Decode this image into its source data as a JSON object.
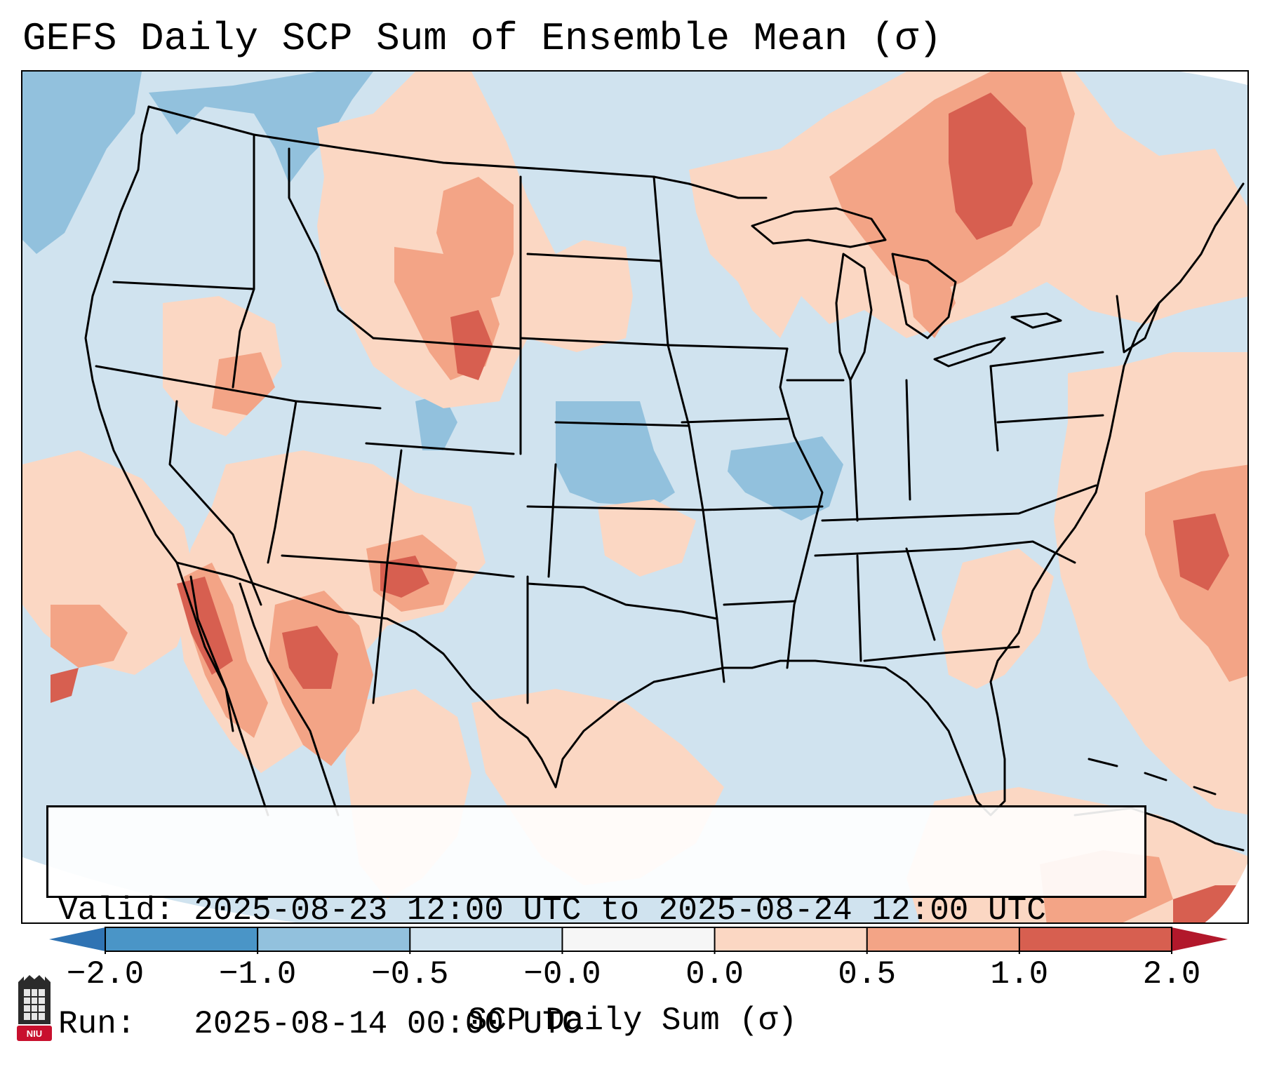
{
  "title": "GEFS Daily SCP Sum of Ensemble Mean (σ)",
  "info": {
    "valid": "Valid: 2025-08-23 12:00 UTC to 2025-08-24 12:00 UTC",
    "run": "Run:   2025-08-14 00:00 UTC"
  },
  "colorbar": {
    "label": "SCP Daily Sum (σ)",
    "ticks": [
      "−2.0",
      "−1.0",
      "−0.5",
      "−0.0",
      "0.0",
      "0.5",
      "1.0",
      "2.0"
    ],
    "bins": [
      {
        "from": -2.0,
        "to": -1.0,
        "color": "#4a95c7"
      },
      {
        "from": -1.0,
        "to": -0.5,
        "color": "#92c1dd"
      },
      {
        "from": -0.5,
        "to": 0.0,
        "color": "#d0e3ef"
      },
      {
        "from": 0.0,
        "to": 0.0,
        "color": "#f6f6f6"
      },
      {
        "from": 0.0,
        "to": 0.5,
        "color": "#fbd7c3"
      },
      {
        "from": 0.5,
        "to": 1.0,
        "color": "#f3a486"
      },
      {
        "from": 1.0,
        "to": 2.0,
        "color": "#d75f50"
      }
    ],
    "extend_low_color": "#2f73b3",
    "extend_high_color": "#b2182b"
  },
  "colors": {
    "base": "#d0e3ef",
    "light_blue": "#92c1dd",
    "light_red": "#fbd7c3",
    "mid_red": "#f3a486",
    "dark_red": "#d75f50",
    "deep_red": "#b2182b"
  },
  "logo": {
    "text": "NIU",
    "icon": "niu-building-icon"
  }
}
